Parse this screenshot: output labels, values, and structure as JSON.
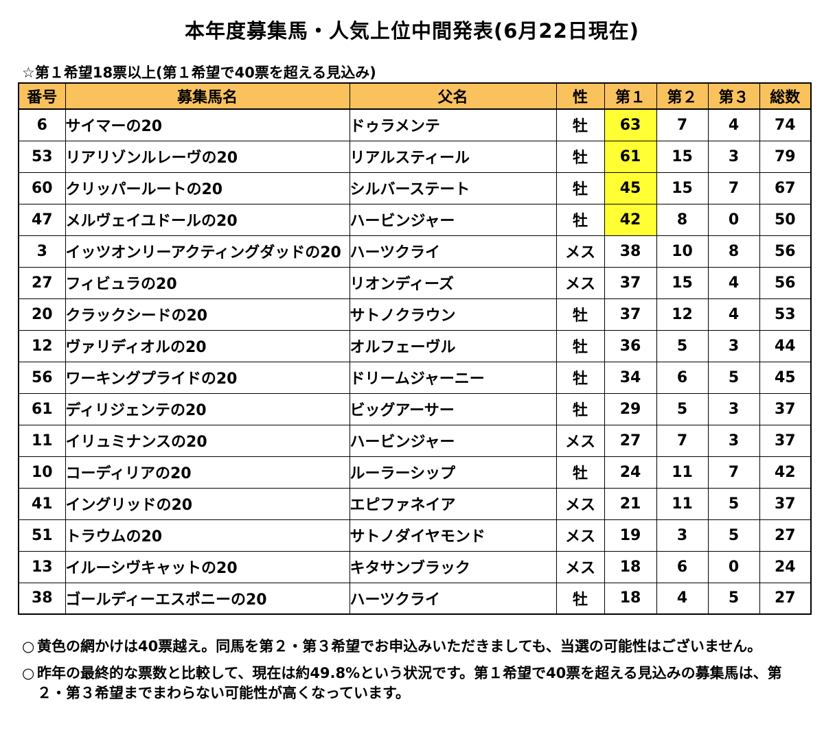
{
  "title": "本年度募集馬・人気上位中間発表(6月22日現在)",
  "subtitle": "☆第１希望18票以上(第１希望で40票を超える見込み)",
  "table": {
    "headers": [
      "番号",
      "募集馬名",
      "父名",
      "性",
      "第１",
      "第２",
      "第３",
      "総数"
    ],
    "highlight_color": "#ffff33",
    "header_color": "#f9c25d",
    "rows": [
      {
        "no": "6",
        "name": "サイマーの20",
        "sire": "ドゥラメンテ",
        "sex": "牡",
        "v1": "63",
        "v2": "7",
        "v3": "4",
        "total": "74",
        "highlight": true
      },
      {
        "no": "53",
        "name": "リアリゾンルレーヴの20",
        "sire": "リアルスティール",
        "sex": "牡",
        "v1": "61",
        "v2": "15",
        "v3": "3",
        "total": "79",
        "highlight": true
      },
      {
        "no": "60",
        "name": "クリッパールートの20",
        "sire": "シルバーステート",
        "sex": "牡",
        "v1": "45",
        "v2": "15",
        "v3": "7",
        "total": "67",
        "highlight": true
      },
      {
        "no": "47",
        "name": "メルヴェイユドールの20",
        "sire": "ハービンジャー",
        "sex": "牡",
        "v1": "42",
        "v2": "8",
        "v3": "0",
        "total": "50",
        "highlight": true
      },
      {
        "no": "3",
        "name": "イッツオンリーアクティングダッドの20",
        "sire": "ハーツクライ",
        "sex": "メス",
        "v1": "38",
        "v2": "10",
        "v3": "8",
        "total": "56",
        "highlight": false
      },
      {
        "no": "27",
        "name": "フィビュラの20",
        "sire": "リオンディーズ",
        "sex": "メス",
        "v1": "37",
        "v2": "15",
        "v3": "4",
        "total": "56",
        "highlight": false
      },
      {
        "no": "20",
        "name": "クラックシードの20",
        "sire": "サトノクラウン",
        "sex": "牡",
        "v1": "37",
        "v2": "12",
        "v3": "4",
        "total": "53",
        "highlight": false
      },
      {
        "no": "12",
        "name": "ヴァリディオルの20",
        "sire": "オルフェーヴル",
        "sex": "牡",
        "v1": "36",
        "v2": "5",
        "v3": "3",
        "total": "44",
        "highlight": false
      },
      {
        "no": "56",
        "name": "ワーキングプライドの20",
        "sire": "ドリームジャーニー",
        "sex": "牡",
        "v1": "34",
        "v2": "6",
        "v3": "5",
        "total": "45",
        "highlight": false
      },
      {
        "no": "61",
        "name": "ディリジェンテの20",
        "sire": "ビッグアーサー",
        "sex": "牡",
        "v1": "29",
        "v2": "5",
        "v3": "3",
        "total": "37",
        "highlight": false
      },
      {
        "no": "11",
        "name": "イリュミナンスの20",
        "sire": "ハービンジャー",
        "sex": "メス",
        "v1": "27",
        "v2": "7",
        "v3": "3",
        "total": "37",
        "highlight": false
      },
      {
        "no": "10",
        "name": "コーディリアの20",
        "sire": "ルーラーシップ",
        "sex": "牡",
        "v1": "24",
        "v2": "11",
        "v3": "7",
        "total": "42",
        "highlight": false
      },
      {
        "no": "41",
        "name": "イングリッドの20",
        "sire": "エピファネイア",
        "sex": "メス",
        "v1": "21",
        "v2": "11",
        "v3": "5",
        "total": "37",
        "highlight": false
      },
      {
        "no": "51",
        "name": "トラウムの20",
        "sire": "サトノダイヤモンド",
        "sex": "メス",
        "v1": "19",
        "v2": "3",
        "v3": "5",
        "total": "27",
        "highlight": false
      },
      {
        "no": "13",
        "name": "イルーシヴキャットの20",
        "sire": "キタサンブラック",
        "sex": "メス",
        "v1": "18",
        "v2": "6",
        "v3": "0",
        "total": "24",
        "highlight": false
      },
      {
        "no": "38",
        "name": "ゴールディーエスポニーの20",
        "sire": "ハーツクライ",
        "sex": "牡",
        "v1": "18",
        "v2": "4",
        "v3": "5",
        "total": "27",
        "highlight": false
      }
    ]
  },
  "notes": [
    {
      "bullet": "○",
      "text": "黄色の網かけは40票越え。同馬を第２・第３希望でお申込みいただきましても、当選の可能性はございません。"
    },
    {
      "bullet": "○",
      "text": "昨年の最終的な票数と比較して、現在は約49.8%という状況です。第１希望で40票を超える見込みの募集馬は、第２・第３希望までまわらない可能性が高くなっています。"
    }
  ]
}
